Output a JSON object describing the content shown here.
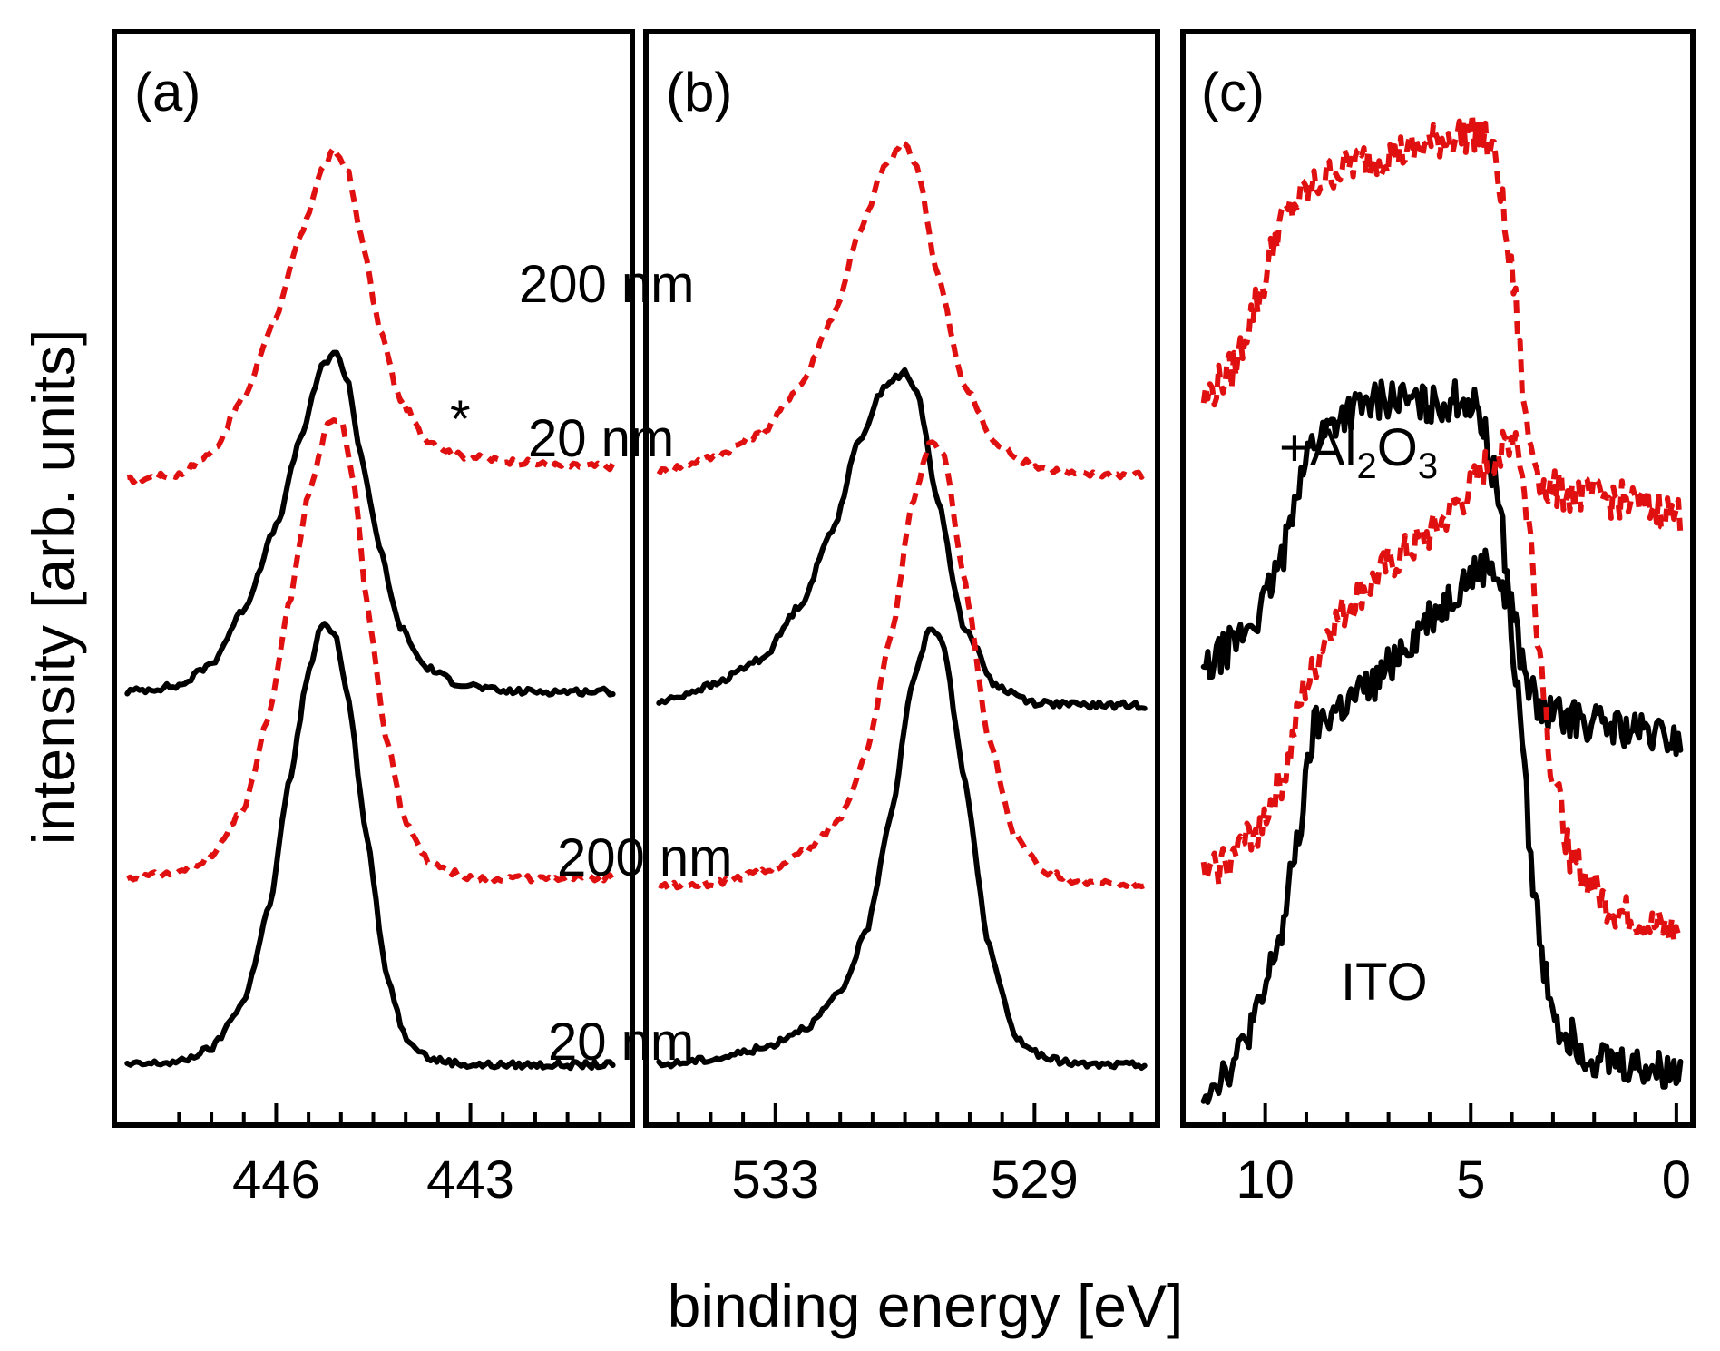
{
  "chart_data": {
    "type": "line",
    "ylabel": "intensity [arb. units]",
    "xlabel": "binding energy [eV]",
    "legend": {
      "dashed": "200 nm",
      "solid": "20 nm",
      "dashed_color": "#e01010",
      "solid_color": "#000000"
    },
    "panels": [
      {
        "label": "(a)",
        "xlim": [
          448.5,
          440.5
        ],
        "xticks": [
          {
            "value": 446,
            "label": "446"
          },
          {
            "value": 443,
            "label": "443"
          }
        ],
        "minor_ticks": [
          447.5,
          447,
          446.5,
          445.5,
          445,
          444.5,
          444,
          443.5,
          442.5,
          442,
          441.5,
          441
        ],
        "annotations": [
          {
            "text": "200 nm",
            "x": 442.0,
            "y": 2.55
          },
          {
            "text": "20 nm",
            "x": 442.0,
            "y": 1.58
          },
          {
            "text": "200 nm",
            "x": 441.5,
            "y": 0.82
          },
          {
            "text": "20 nm",
            "x": 441.2,
            "y": 0.17
          },
          {
            "text": "*",
            "x": 443.9,
            "y": 1.8
          }
        ],
        "series": [
          {
            "name": "200 nm",
            "style": "dashed",
            "x": [
              448.3,
              447.5,
              447.0,
              446.5,
              446.0,
              445.6,
              445.3,
              445.1,
              444.9,
              444.7,
              444.4,
              444.1,
              443.7,
              443.2,
              442.5,
              441.5,
              440.8
            ],
            "y": [
              2.25,
              2.27,
              2.35,
              2.55,
              2.85,
              3.15,
              3.38,
              3.45,
              3.38,
              3.15,
              2.8,
              2.55,
              2.4,
              2.34,
              2.32,
              2.3,
              2.3
            ]
          },
          {
            "name": "20 nm",
            "style": "solid",
            "x": [
              448.3,
              447.5,
              447.0,
              446.5,
              446.0,
              445.6,
              445.3,
              445.1,
              444.9,
              444.7,
              444.4,
              444.1,
              443.7,
              443.2,
              442.5,
              441.5,
              440.8
            ],
            "y": [
              1.48,
              1.5,
              1.58,
              1.78,
              2.08,
              2.42,
              2.66,
              2.72,
              2.62,
              2.35,
              2.0,
              1.72,
              1.57,
              1.51,
              1.48,
              1.48,
              1.48
            ]
          },
          {
            "name": "200 nm",
            "style": "dashed",
            "x": [
              448.3,
              447.5,
              447.0,
              446.5,
              446.1,
              445.8,
              445.5,
              445.2,
              445.0,
              444.8,
              444.6,
              444.3,
              444.0,
              443.6,
              443.0,
              442.0,
              440.8
            ],
            "y": [
              0.8,
              0.82,
              0.88,
              1.05,
              1.4,
              1.8,
              2.2,
              2.45,
              2.48,
              2.25,
              1.8,
              1.3,
              1.0,
              0.85,
              0.8,
              0.8,
              0.8
            ]
          },
          {
            "name": "20 nm",
            "style": "solid",
            "x": [
              448.3,
              447.5,
              447.0,
              446.5,
              446.1,
              445.8,
              445.5,
              445.3,
              445.1,
              444.9,
              444.6,
              444.3,
              444.0,
              443.6,
              443.0,
              442.0,
              440.8
            ],
            "y": [
              0.12,
              0.13,
              0.18,
              0.35,
              0.7,
              1.15,
              1.55,
              1.72,
              1.7,
              1.48,
              0.95,
              0.45,
              0.22,
              0.14,
              0.12,
              0.12,
              0.12
            ]
          }
        ]
      },
      {
        "label": "(b)",
        "xlim": [
          535.0,
          527.1
        ],
        "xticks": [
          {
            "value": 533,
            "label": "533"
          },
          {
            "value": 529,
            "label": "529"
          }
        ],
        "minor_ticks": [
          534.5,
          534,
          533.5,
          532.5,
          532,
          531.5,
          531,
          530.5,
          530,
          529.5,
          528.5,
          528,
          527.5
        ],
        "annotations": [],
        "series": [
          {
            "name": "200 nm",
            "style": "dashed",
            "x": [
              534.8,
              534.0,
              533.2,
              532.6,
              532.1,
              531.7,
              531.3,
              531.0,
              530.8,
              530.5,
              530.1,
              529.6,
              529.0,
              528.3,
              527.3
            ],
            "y": [
              2.28,
              2.33,
              2.42,
              2.6,
              2.85,
              3.15,
              3.4,
              3.48,
              3.38,
              3.0,
              2.6,
              2.38,
              2.3,
              2.27,
              2.27
            ]
          },
          {
            "name": "20 nm",
            "style": "solid",
            "x": [
              534.8,
              534.0,
              533.2,
              532.6,
              532.1,
              531.7,
              531.3,
              531.0,
              530.8,
              530.5,
              530.1,
              529.6,
              529.0,
              528.3,
              527.3
            ],
            "y": [
              1.44,
              1.5,
              1.6,
              1.8,
              2.08,
              2.4,
              2.6,
              2.64,
              2.56,
              2.18,
              1.72,
              1.5,
              1.44,
              1.43,
              1.43
            ]
          },
          {
            "name": "200 nm",
            "style": "dashed",
            "x": [
              534.8,
              534.0,
              533.2,
              532.5,
              532.0,
              531.6,
              531.2,
              530.9,
              530.6,
              530.4,
              530.1,
              529.7,
              529.3,
              528.8,
              528.2,
              527.3
            ],
            "y": [
              0.77,
              0.78,
              0.82,
              0.9,
              1.02,
              1.25,
              1.7,
              2.15,
              2.4,
              2.35,
              1.9,
              1.3,
              0.95,
              0.82,
              0.78,
              0.78
            ]
          },
          {
            "name": "20 nm",
            "style": "solid",
            "x": [
              534.8,
              534.0,
              533.2,
              532.5,
              532.0,
              531.6,
              531.2,
              530.9,
              530.6,
              530.4,
              530.1,
              529.7,
              529.3,
              528.8,
              528.2,
              527.3
            ],
            "y": [
              0.12,
              0.14,
              0.18,
              0.26,
              0.38,
              0.6,
              1.05,
              1.5,
              1.72,
              1.65,
              1.18,
              0.55,
              0.22,
              0.14,
              0.12,
              0.12
            ]
          }
        ]
      },
      {
        "label": "(c)",
        "xlim": [
          12.0,
          -0.4
        ],
        "xticks": [
          {
            "value": 10,
            "label": "10"
          },
          {
            "value": 5,
            "label": "5"
          },
          {
            "value": 0,
            "label": "0"
          }
        ],
        "minor_ticks": [
          11,
          9,
          8,
          7,
          6,
          4,
          3,
          2,
          1
        ],
        "annotations": [
          {
            "text": "ITO",
            "x": 6.8,
            "y": 0.45
          }
        ],
        "formula_annotation": {
          "prefix": "+Al",
          "sub1": "2",
          "mid": "O",
          "sub2": "3",
          "x": 8.5,
          "y": 1.62
        },
        "series": [
          {
            "name": "200 nm",
            "style": "dashed",
            "x": [
              11.5,
              10.8,
              10.2,
              9.6,
              9.0,
              8.3,
              7.5,
              6.5,
              5.5,
              4.8,
              4.4,
              4.0,
              3.6,
              3.2,
              2.5,
              1.5,
              0.5,
              -0.1
            ],
            "y": [
              2.55,
              2.65,
              2.9,
              3.2,
              3.3,
              3.38,
              3.42,
              3.45,
              3.5,
              3.52,
              3.42,
              3.0,
              2.4,
              2.22,
              2.2,
              2.18,
              2.15,
              2.12
            ]
          },
          {
            "name": "20 nm",
            "style": "solid",
            "x": [
              11.5,
              10.8,
              10.2,
              9.6,
              9.2,
              8.8,
              8.0,
              7.0,
              6.0,
              5.2,
              4.8,
              4.4,
              4.0,
              3.7,
              3.3,
              2.5,
              1.5,
              0.5,
              -0.1
            ],
            "y": [
              1.55,
              1.65,
              1.75,
              1.95,
              2.25,
              2.4,
              2.5,
              2.55,
              2.52,
              2.55,
              2.5,
              2.25,
              1.8,
              1.55,
              1.4,
              1.38,
              1.35,
              1.32,
              1.3
            ]
          },
          {
            "name": "200 nm",
            "style": "dashed",
            "x": [
              11.5,
              10.8,
              10.2,
              9.6,
              9.0,
              8.4,
              7.6,
              6.8,
              6.0,
              5.2,
              4.6,
              4.2,
              3.9,
              3.6,
              3.3,
              3.0,
              2.5,
              1.5,
              0.5,
              -0.1
            ],
            "y": [
              0.8,
              0.88,
              0.98,
              1.15,
              1.5,
              1.72,
              1.85,
              1.96,
              2.05,
              2.18,
              2.3,
              2.38,
              2.42,
              2.1,
              1.6,
              1.15,
              0.85,
              0.68,
              0.62,
              0.6
            ]
          },
          {
            "name": "20 nm",
            "style": "solid",
            "x": [
              11.5,
              10.8,
              10.2,
              9.6,
              9.2,
              8.8,
              8.2,
              7.4,
              6.6,
              5.8,
              5.0,
              4.5,
              4.1,
              3.8,
              3.5,
              3.2,
              2.8,
              2.0,
              1.0,
              0.3,
              -0.1
            ],
            "y": [
              0.03,
              0.12,
              0.3,
              0.6,
              0.95,
              1.35,
              1.42,
              1.5,
              1.65,
              1.78,
              1.9,
              1.95,
              1.8,
              1.4,
              0.8,
              0.45,
              0.25,
              0.15,
              0.12,
              0.1,
              0.1
            ]
          }
        ]
      }
    ]
  }
}
